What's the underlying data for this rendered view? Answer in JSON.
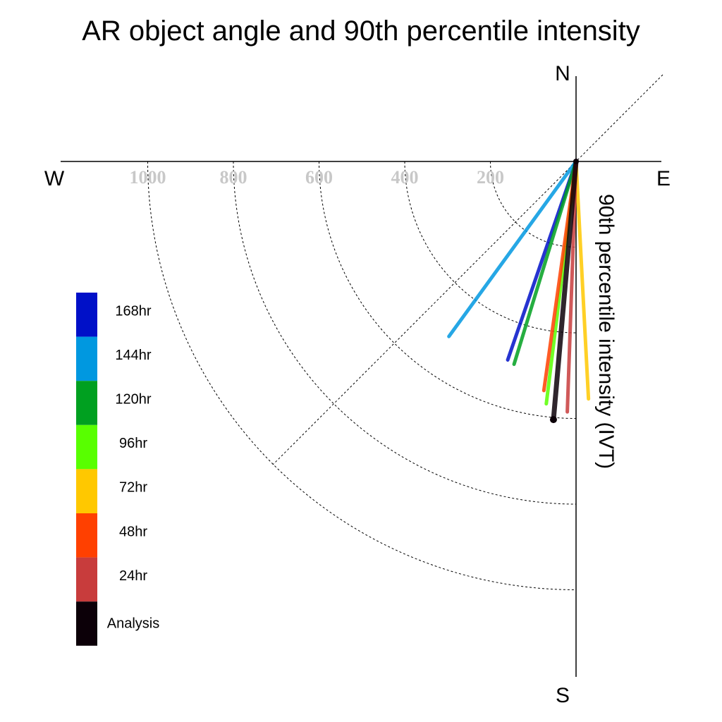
{
  "chart_data": {
    "type": "polar-vector",
    "title": "AR object angle and 90th percentile intensity",
    "ylabel": "90th percentile intensity (IVT)",
    "compass": {
      "north": "N",
      "south": "S",
      "east": "E",
      "west": "W"
    },
    "radial_ticks": [
      "200",
      "400",
      "600",
      "800",
      "1000"
    ],
    "radial_tick_values": [
      200,
      400,
      600,
      800,
      1000
    ],
    "rlim": [
      0,
      1000
    ],
    "grid": true,
    "legend_position": "left",
    "series": [
      {
        "name": "168hr",
        "color": "#0010c8",
        "angle_deg": 199,
        "intensity": 490
      },
      {
        "name": "144hr",
        "color": "#0098e0",
        "angle_deg": 216,
        "intensity": 505
      },
      {
        "name": "120hr",
        "color": "#00a020",
        "angle_deg": 197,
        "intensity": 495
      },
      {
        "name": "96hr",
        "color": "#58ff00",
        "angle_deg": 187,
        "intensity": 570
      },
      {
        "name": "72hr",
        "color": "#ffc800",
        "angle_deg": 177,
        "intensity": 555
      },
      {
        "name": "48hr",
        "color": "#ff4000",
        "angle_deg": 188,
        "intensity": 540
      },
      {
        "name": "24hr",
        "color": "#c83c3c",
        "angle_deg": 182,
        "intensity": 585
      },
      {
        "name": "Analysis",
        "color": "#0c0008",
        "angle_deg": 185,
        "intensity": 605
      }
    ]
  }
}
